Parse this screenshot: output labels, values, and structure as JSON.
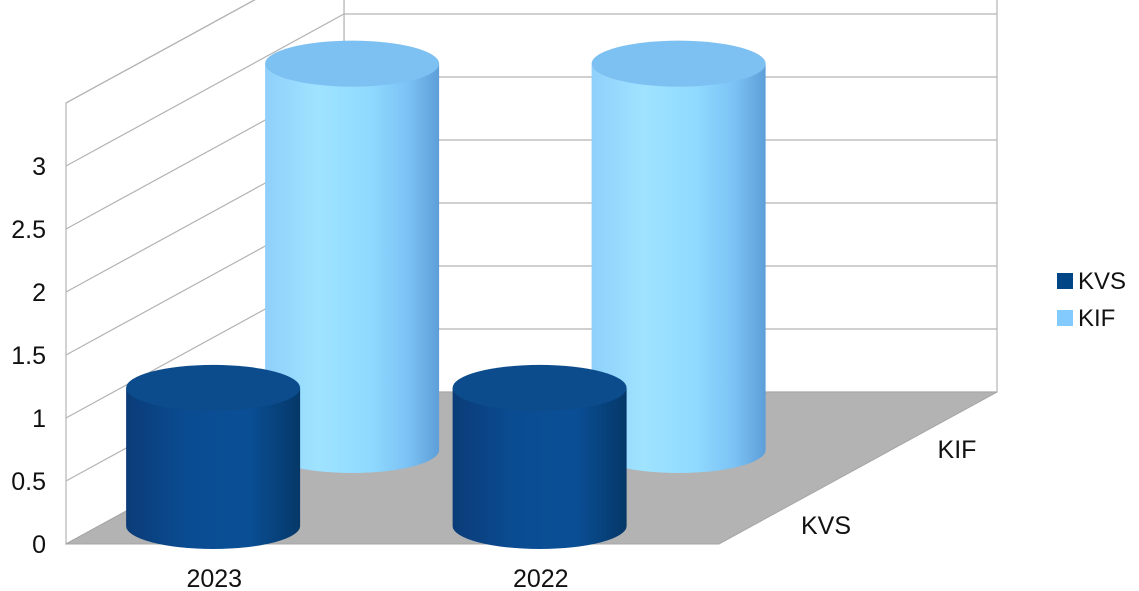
{
  "chart_data": {
    "type": "bar",
    "style": "3d-cylinder",
    "categories": [
      "2023",
      "2022"
    ],
    "series": [
      {
        "name": "KVS",
        "values": [
          1,
          1
        ],
        "color": "#004586"
      },
      {
        "name": "KIF",
        "values": [
          3,
          3
        ],
        "color": "#83caff"
      }
    ],
    "depth_labels": [
      "KVS",
      "KIF"
    ],
    "y_ticks": [
      "0",
      "0.5",
      "1",
      "1.5",
      "2",
      "2.5",
      "3"
    ],
    "ylim": [
      0,
      3.5
    ],
    "title": "",
    "xlabel": "",
    "ylabel": "",
    "grid": true,
    "legend": "right"
  }
}
